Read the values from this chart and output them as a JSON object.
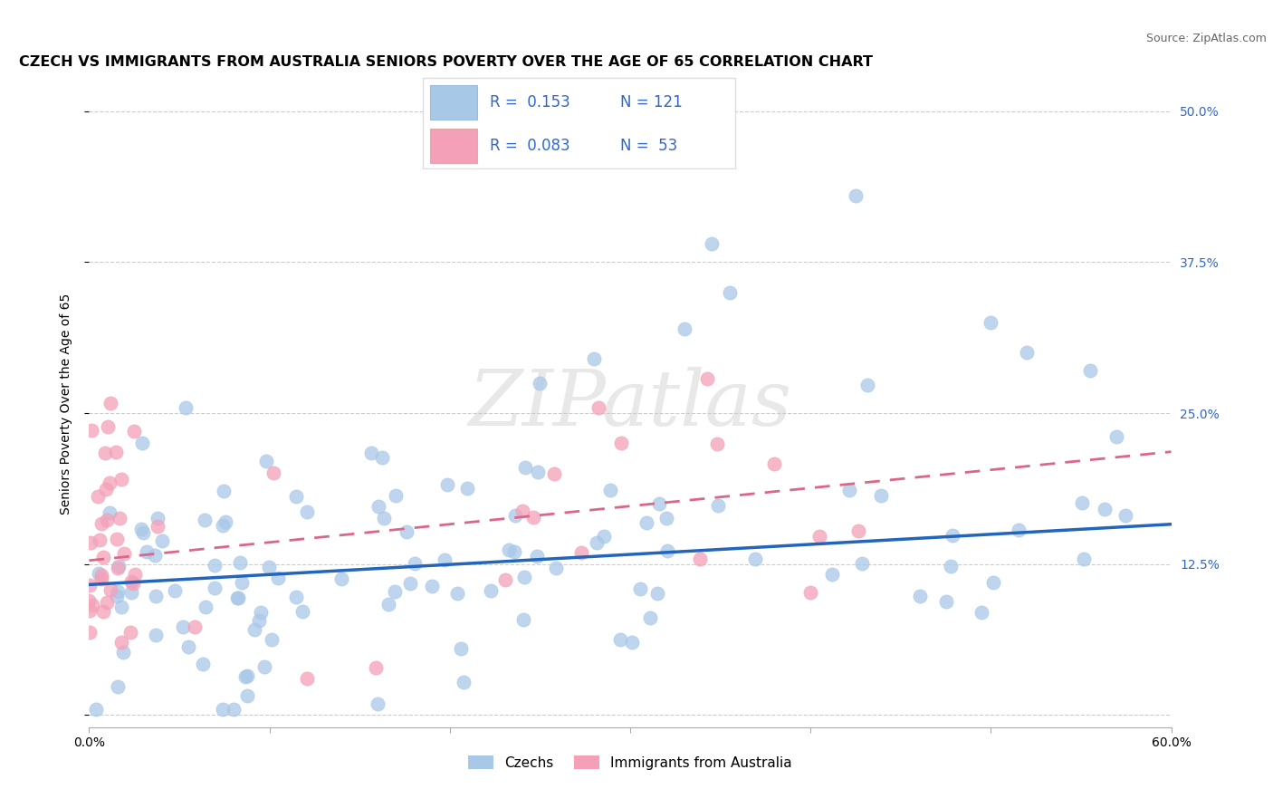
{
  "title": "CZECH VS IMMIGRANTS FROM AUSTRALIA SENIORS POVERTY OVER THE AGE OF 65 CORRELATION CHART",
  "source": "Source: ZipAtlas.com",
  "ylabel": "Seniors Poverty Over the Age of 65",
  "x_min": 0.0,
  "x_max": 0.6,
  "y_min": -0.01,
  "y_max": 0.525,
  "y_ticks": [
    0.0,
    0.125,
    0.25,
    0.375,
    0.5
  ],
  "y_tick_labels": [
    "",
    "12.5%",
    "25.0%",
    "37.5%",
    "50.0%"
  ],
  "legend_labels": [
    "Czechs",
    "Immigrants from Australia"
  ],
  "blue_color": "#a8c8e8",
  "pink_color": "#f4a0b8",
  "blue_line_color": "#2266bb",
  "pink_line_color": "#dd6688",
  "title_fontsize": 11.5,
  "axis_label_fontsize": 10,
  "tick_fontsize": 10,
  "czech_line_start_y": 0.108,
  "czech_line_end_y": 0.158,
  "aus_line_start_y": 0.128,
  "aus_line_end_y": 0.218
}
